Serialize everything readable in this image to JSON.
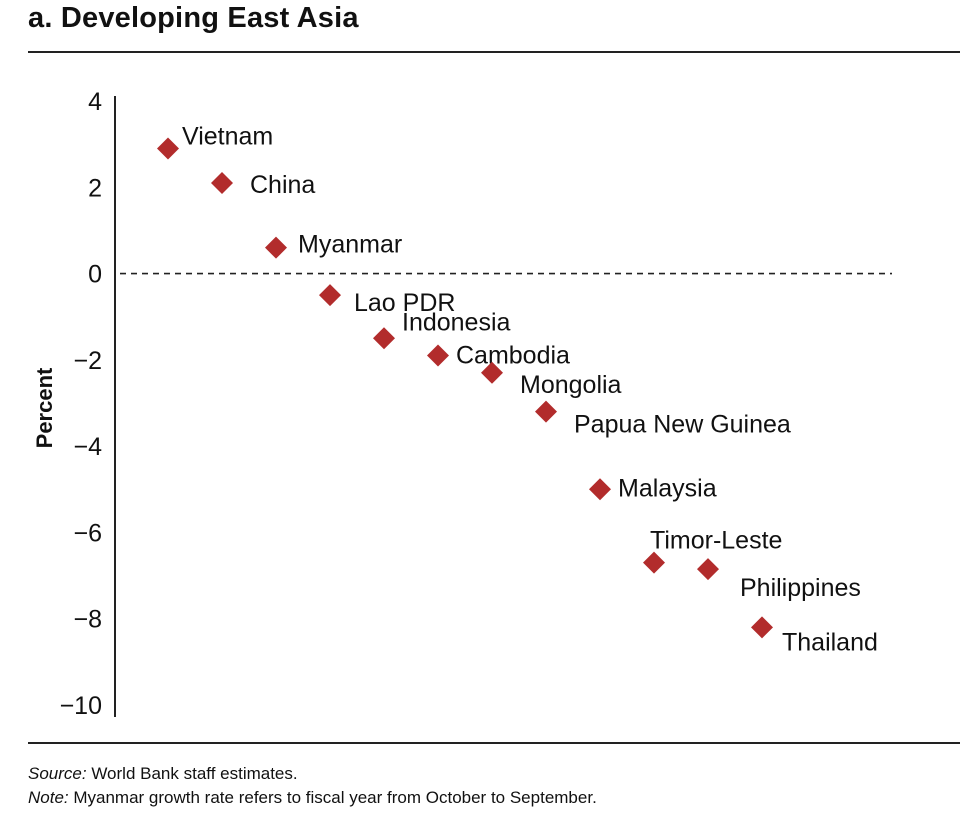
{
  "header": {
    "title": "a. Developing East Asia"
  },
  "footer": {
    "source_label": "Source:",
    "source_text": " World Bank staff estimates.",
    "note_label": "Note:",
    "note_text": " Myanmar growth rate refers to fiscal year from October to September."
  },
  "colors": {
    "marker": "#b22c2c",
    "axis": "#222222"
  },
  "chart_data": {
    "type": "scatter",
    "title": "a. Developing East Asia",
    "xlabel": "",
    "ylabel": "Percent",
    "ylim": [
      -10,
      4
    ],
    "yticks": [
      4,
      2,
      0,
      -2,
      -4,
      -6,
      -8,
      -10
    ],
    "ytick_labels": [
      "4",
      "2",
      "0",
      "−2",
      "−4",
      "−6",
      "−8",
      "−10"
    ],
    "reference_line": {
      "y": 0,
      "style": "dashed"
    },
    "grid": false,
    "legend": "none",
    "points": [
      {
        "label": "Vietnam",
        "y": 2.9
      },
      {
        "label": "China",
        "y": 2.1
      },
      {
        "label": "Myanmar",
        "y": 0.6
      },
      {
        "label": "Lao PDR",
        "y": -0.5
      },
      {
        "label": "Indonesia",
        "y": -1.5
      },
      {
        "label": "Cambodia",
        "y": -1.9
      },
      {
        "label": "Mongolia",
        "y": -2.3
      },
      {
        "label": "Papua New Guinea",
        "y": -3.2
      },
      {
        "label": "Malaysia",
        "y": -5.0
      },
      {
        "label": "Timor-Leste",
        "y": -6.7
      },
      {
        "label": "Philippines",
        "y": -6.85
      },
      {
        "label": "Thailand",
        "y": -8.2
      }
    ]
  }
}
